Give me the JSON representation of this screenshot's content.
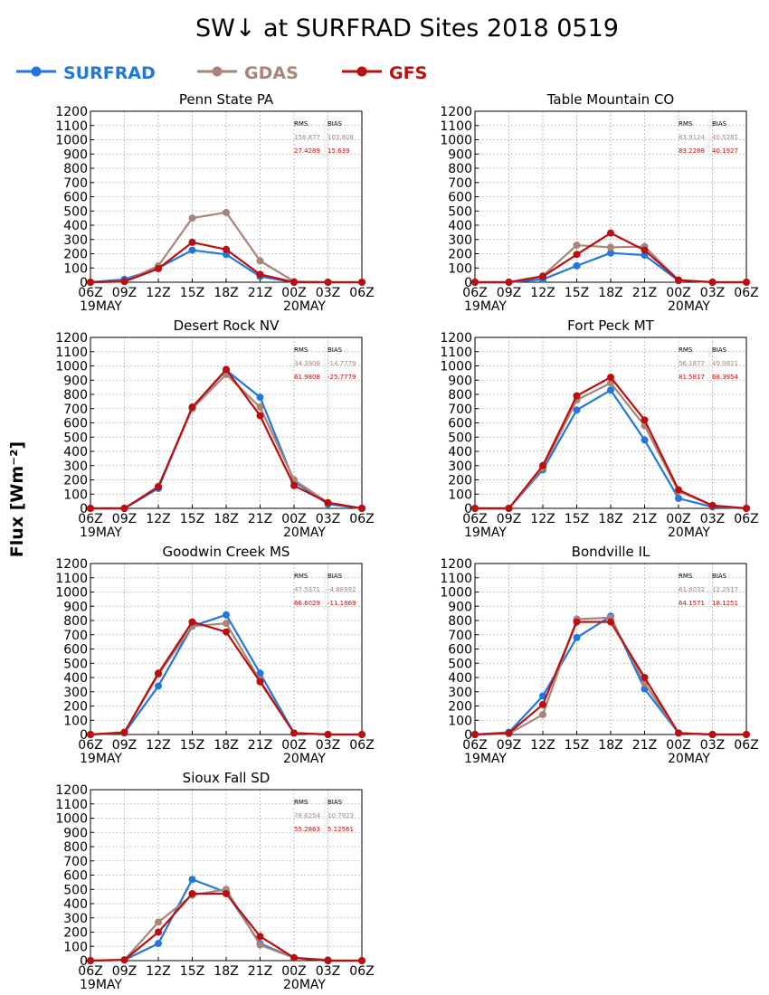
{
  "figure": {
    "title": "SW↓ at SURFRAD Sites    2018 0519",
    "ylabel": "Flux [Wm⁻²]"
  },
  "legend": [
    {
      "name": "SURFRAD",
      "color": "#2277dd"
    },
    {
      "name": "GDAS",
      "color": "#a98478"
    },
    {
      "name": "GFS",
      "color": "#bb0f0f"
    }
  ],
  "stats_headers": {
    "rms": "RMS",
    "bias": "BIAS"
  },
  "chart_data": [
    {
      "type": "line",
      "title": "Penn State PA",
      "x": [
        "06Z",
        "09Z",
        "12Z",
        "15Z",
        "18Z",
        "21Z",
        "00Z",
        "03Z",
        "06Z"
      ],
      "x_dates": {
        "0": "19MAY",
        "6": "20MAY"
      },
      "ylim": [
        0,
        1200
      ],
      "yticks": [
        0,
        100,
        200,
        300,
        400,
        500,
        600,
        700,
        800,
        900,
        1000,
        1100,
        1200
      ],
      "grid": true,
      "series": [
        {
          "name": "SURFRAD",
          "values": [
            0,
            20,
            100,
            225,
            195,
            40,
            0,
            null,
            null
          ]
        },
        {
          "name": "GDAS",
          "values": [
            0,
            5,
            115,
            450,
            490,
            150,
            5,
            0,
            0
          ]
        },
        {
          "name": "GFS",
          "values": [
            0,
            5,
            95,
            280,
            230,
            55,
            0,
            0,
            0
          ]
        }
      ],
      "stats": [
        {
          "name": "GDAS",
          "rms": "158.877",
          "bias": "103.808"
        },
        {
          "name": "GFS",
          "rms": "27.4289",
          "bias": "15.639"
        }
      ]
    },
    {
      "type": "line",
      "title": "Table Mountain CO",
      "x": [
        "06Z",
        "09Z",
        "12Z",
        "15Z",
        "18Z",
        "21Z",
        "00Z",
        "03Z",
        "06Z"
      ],
      "x_dates": {
        "0": "19MAY",
        "6": "20MAY"
      },
      "ylim": [
        0,
        1200
      ],
      "yticks": [
        0,
        100,
        200,
        300,
        400,
        500,
        600,
        700,
        800,
        900,
        1000,
        1100,
        1200
      ],
      "grid": true,
      "series": [
        {
          "name": "SURFRAD",
          "values": [
            0,
            0,
            20,
            115,
            205,
            190,
            10,
            null,
            null
          ]
        },
        {
          "name": "GDAS",
          "values": [
            0,
            0,
            45,
            260,
            245,
            250,
            15,
            0,
            0
          ]
        },
        {
          "name": "GFS",
          "values": [
            0,
            0,
            40,
            195,
            345,
            225,
            15,
            0,
            0
          ]
        }
      ],
      "stats": [
        {
          "name": "GDAS",
          "rms": "83.9124",
          "bias": "40.5281"
        },
        {
          "name": "GFS",
          "rms": "83.2288",
          "bias": "40.1927"
        }
      ]
    },
    {
      "type": "line",
      "title": "Desert Rock NV",
      "x": [
        "06Z",
        "09Z",
        "12Z",
        "15Z",
        "18Z",
        "21Z",
        "00Z",
        "03Z",
        "06Z"
      ],
      "x_dates": {
        "0": "19MAY",
        "6": "20MAY"
      },
      "ylim": [
        0,
        1200
      ],
      "yticks": [
        0,
        100,
        200,
        300,
        400,
        500,
        600,
        700,
        800,
        900,
        1000,
        1100,
        1200
      ],
      "grid": true,
      "series": [
        {
          "name": "SURFRAD",
          "values": [
            0,
            0,
            140,
            710,
            970,
            780,
            190,
            30,
            0
          ]
        },
        {
          "name": "GDAS",
          "values": [
            0,
            0,
            155,
            700,
            940,
            710,
            200,
            40,
            0
          ]
        },
        {
          "name": "GFS",
          "values": [
            0,
            0,
            150,
            710,
            975,
            650,
            160,
            40,
            0
          ]
        }
      ],
      "stats": [
        {
          "name": "GDAS",
          "rms": "34.3908",
          "bias": "-14.7779"
        },
        {
          "name": "GFS",
          "rms": "61.9808",
          "bias": "-25.7779"
        }
      ]
    },
    {
      "type": "line",
      "title": "Fort Peck MT",
      "x": [
        "06Z",
        "09Z",
        "12Z",
        "15Z",
        "18Z",
        "21Z",
        "00Z",
        "03Z",
        "06Z"
      ],
      "x_dates": {
        "0": "19MAY",
        "6": "20MAY"
      },
      "ylim": [
        0,
        1200
      ],
      "yticks": [
        0,
        100,
        200,
        300,
        400,
        500,
        600,
        700,
        800,
        900,
        1000,
        1100,
        1200
      ],
      "grid": true,
      "series": [
        {
          "name": "SURFRAD",
          "values": [
            0,
            0,
            270,
            690,
            830,
            480,
            70,
            10,
            0
          ]
        },
        {
          "name": "GDAS",
          "values": [
            0,
            0,
            285,
            760,
            880,
            580,
            120,
            20,
            0
          ]
        },
        {
          "name": "GFS",
          "values": [
            0,
            0,
            300,
            790,
            920,
            620,
            130,
            20,
            0
          ]
        }
      ],
      "stats": [
        {
          "name": "GDAS",
          "rms": "56.1877",
          "bias": "49.0821"
        },
        {
          "name": "GFS",
          "rms": "81.5817",
          "bias": "68.3954"
        }
      ]
    },
    {
      "type": "line",
      "title": "Goodwin Creek MS",
      "x": [
        "06Z",
        "09Z",
        "12Z",
        "15Z",
        "18Z",
        "21Z",
        "00Z",
        "03Z",
        "06Z"
      ],
      "x_dates": {
        "0": "19MAY",
        "6": "20MAY"
      },
      "ylim": [
        0,
        1200
      ],
      "yticks": [
        0,
        100,
        200,
        300,
        400,
        500,
        600,
        700,
        800,
        900,
        1000,
        1100,
        1200
      ],
      "grid": true,
      "series": [
        {
          "name": "SURFRAD",
          "values": [
            0,
            10,
            340,
            760,
            840,
            430,
            10,
            0,
            null
          ]
        },
        {
          "name": "GDAS",
          "values": [
            0,
            15,
            420,
            760,
            780,
            380,
            10,
            0,
            0
          ]
        },
        {
          "name": "GFS",
          "values": [
            0,
            15,
            430,
            790,
            720,
            370,
            10,
            0,
            0
          ]
        }
      ],
      "stats": [
        {
          "name": "GDAS",
          "rms": "47.5371",
          "bias": "-4.88992"
        },
        {
          "name": "GFS",
          "rms": "66.6029",
          "bias": "-11.1869"
        }
      ]
    },
    {
      "type": "line",
      "title": "Bondville IL",
      "x": [
        "06Z",
        "09Z",
        "12Z",
        "15Z",
        "18Z",
        "21Z",
        "00Z",
        "03Z",
        "06Z"
      ],
      "x_dates": {
        "0": "19MAY",
        "6": "20MAY"
      },
      "ylim": [
        0,
        1200
      ],
      "yticks": [
        0,
        100,
        200,
        300,
        400,
        500,
        600,
        700,
        800,
        900,
        1000,
        1100,
        1200
      ],
      "grid": true,
      "series": [
        {
          "name": "SURFRAD",
          "values": [
            0,
            15,
            270,
            680,
            830,
            320,
            10,
            0,
            null
          ]
        },
        {
          "name": "GDAS",
          "values": [
            0,
            5,
            140,
            810,
            820,
            360,
            10,
            0,
            0
          ]
        },
        {
          "name": "GFS",
          "values": [
            0,
            10,
            210,
            790,
            790,
            400,
            10,
            0,
            0
          ]
        }
      ],
      "stats": [
        {
          "name": "GDAS",
          "rms": "61.6032",
          "bias": "12.2917"
        },
        {
          "name": "GFS",
          "rms": "64.1571",
          "bias": "18.1251"
        }
      ]
    },
    {
      "type": "line",
      "title": "Sioux Fall SD",
      "x": [
        "06Z",
        "09Z",
        "12Z",
        "15Z",
        "18Z",
        "21Z",
        "00Z",
        "03Z",
        "06Z"
      ],
      "x_dates": {
        "0": "19MAY",
        "6": "20MAY"
      },
      "ylim": [
        0,
        1200
      ],
      "yticks": [
        0,
        100,
        200,
        300,
        400,
        500,
        600,
        700,
        800,
        900,
        1000,
        1100,
        1200
      ],
      "grid": true,
      "series": [
        {
          "name": "SURFRAD",
          "values": [
            0,
            5,
            120,
            570,
            480,
            120,
            20,
            5,
            null
          ]
        },
        {
          "name": "GDAS",
          "values": [
            0,
            5,
            270,
            460,
            500,
            110,
            20,
            0,
            0
          ]
        },
        {
          "name": "GFS",
          "values": [
            0,
            5,
            200,
            470,
            470,
            170,
            20,
            0,
            0
          ]
        }
      ],
      "stats": [
        {
          "name": "GDAS",
          "rms": "78.6254",
          "bias": "10.7923"
        },
        {
          "name": "GFS",
          "rms": "55.2863",
          "bias": "5.12561"
        }
      ]
    }
  ]
}
